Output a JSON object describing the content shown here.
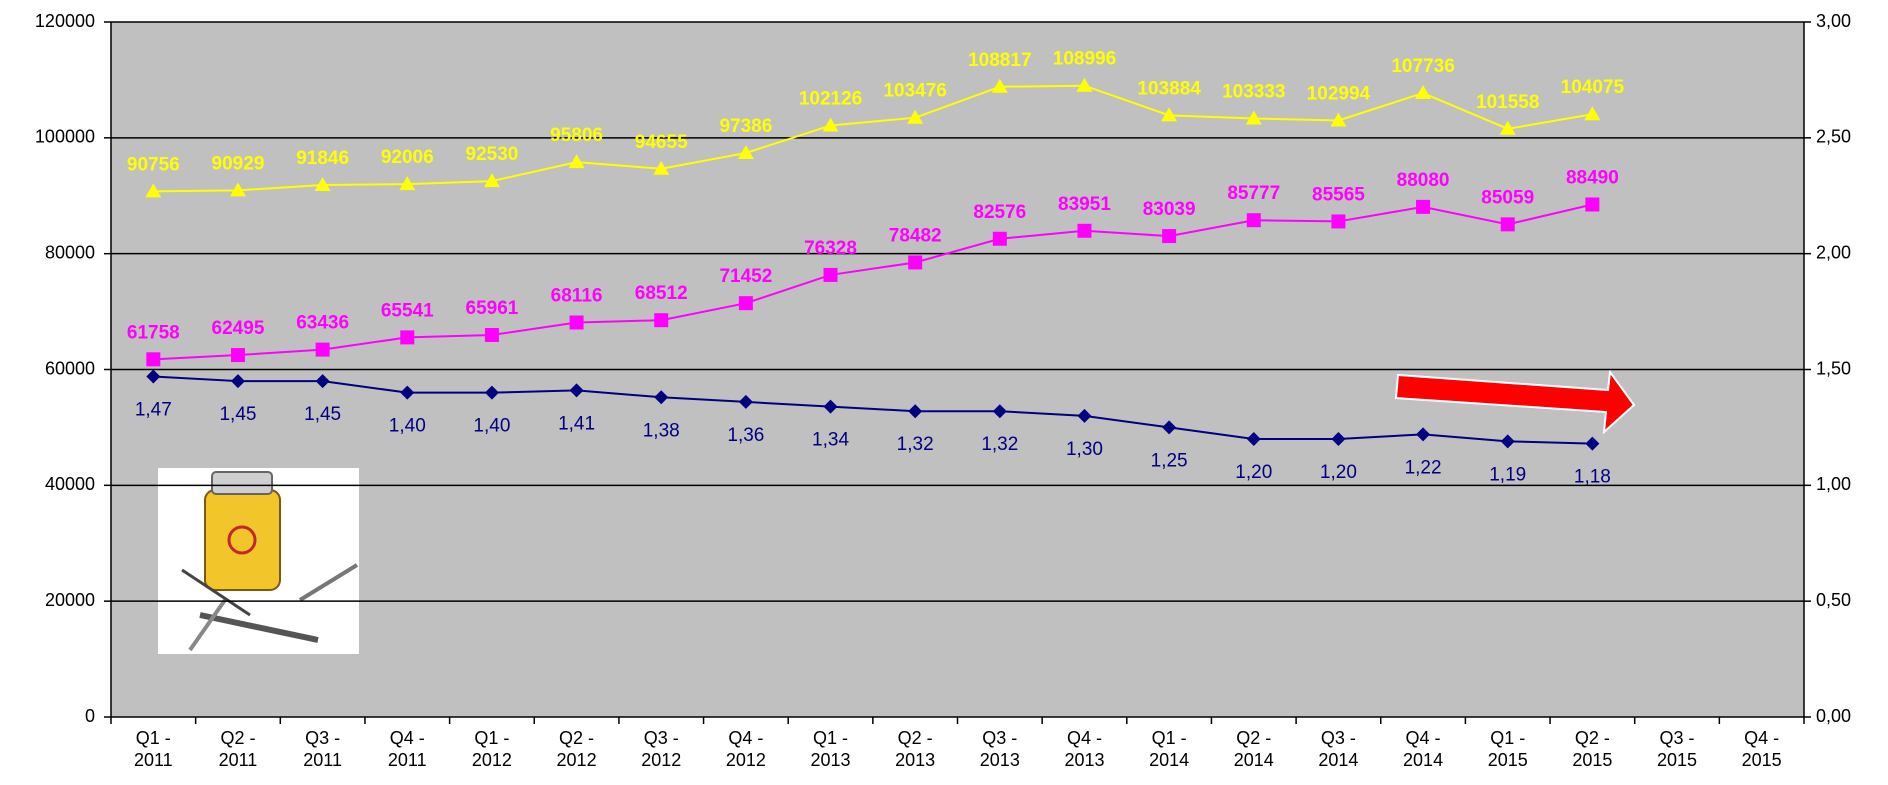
{
  "chart_data": {
    "type": "line",
    "categories": [
      "Q1 - 2011",
      "Q2 - 2011",
      "Q3 - 2011",
      "Q4 - 2011",
      "Q1 - 2012",
      "Q2 - 2012",
      "Q3 - 2012",
      "Q4 - 2012",
      "Q1 - 2013",
      "Q2 - 2013",
      "Q3 - 2013",
      "Q4 - 2013",
      "Q1 - 2014",
      "Q2 - 2014",
      "Q3 - 2014",
      "Q4 - 2014",
      "Q1 - 2015",
      "Q2 - 2015",
      "Q3 - 2015",
      "Q4 - 2015"
    ],
    "series": [
      {
        "color": "#ffff00",
        "marker": "triangle",
        "values": [
          90756,
          90929,
          91846,
          92006,
          92530,
          95806,
          94655,
          97386,
          102126,
          103476,
          108817,
          108996,
          103884,
          103333,
          102994,
          107736,
          101558,
          104075,
          null,
          null
        ]
      },
      {
        "color": "#ff00ff",
        "marker": "square",
        "values": [
          61758,
          62495,
          63436,
          65541,
          65961,
          68116,
          68512,
          71452,
          76328,
          78482,
          82576,
          83951,
          83039,
          85777,
          85565,
          88080,
          85059,
          88490,
          null,
          null
        ]
      },
      {
        "color": "#000080",
        "marker": "diamond",
        "axis": "y2",
        "values": [
          1.47,
          1.45,
          1.45,
          1.4,
          1.4,
          1.41,
          1.38,
          1.36,
          1.34,
          1.32,
          1.32,
          1.3,
          1.25,
          1.2,
          1.2,
          1.22,
          1.19,
          1.18,
          null,
          null
        ],
        "value_labels": [
          "1,47",
          "1,45",
          "1,45",
          "1,40",
          "1,40",
          "1,41",
          "1,38",
          "1,36",
          "1,34",
          "1,32",
          "1,32",
          "1,30",
          "1,25",
          "1,20",
          "1,20",
          "1,22",
          "1,19",
          "1,18",
          null,
          null
        ]
      }
    ],
    "ylim": [
      0,
      120000
    ],
    "yticks": [
      0,
      20000,
      40000,
      60000,
      80000,
      100000,
      120000
    ],
    "y2lim": [
      0,
      3
    ],
    "y2ticks": [
      {
        "value": 0,
        "label": "0,00"
      },
      {
        "value": 0.5,
        "label": "0,50"
      },
      {
        "value": 1,
        "label": "1,00"
      },
      {
        "value": 1.5,
        "label": "1,50"
      },
      {
        "value": 2,
        "label": "2,00"
      },
      {
        "value": 2.5,
        "label": "2,50"
      },
      {
        "value": 3,
        "label": "3,00"
      }
    ],
    "grid": true,
    "plot_background": "#c0c0c0"
  }
}
